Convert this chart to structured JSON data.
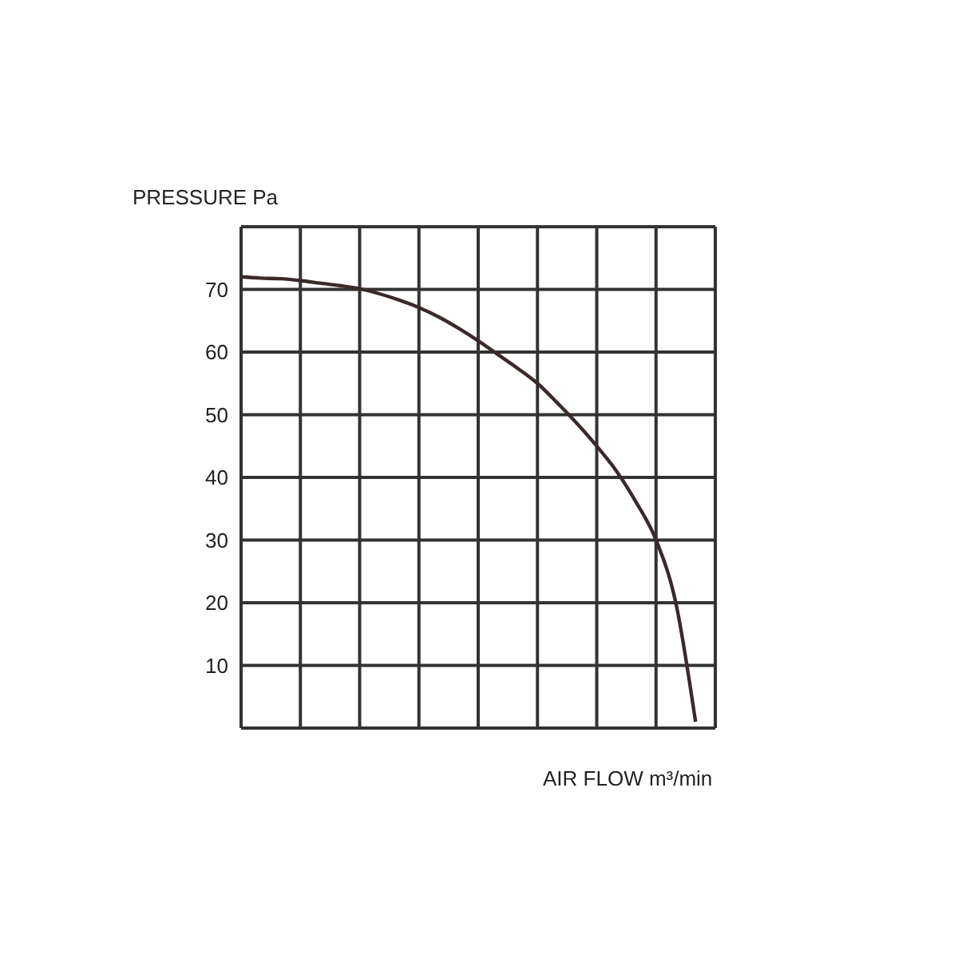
{
  "chart_data": {
    "type": "line",
    "ylabel": "PRESSURE Pa",
    "xlabel": "AIR FLOW m³/min",
    "categories": [
      null,
      null,
      null,
      null,
      null,
      null,
      null,
      null,
      null,
      null,
      null,
      null,
      null,
      null,
      null,
      null,
      null,
      null,
      null,
      null,
      null,
      null,
      null,
      null
    ],
    "series": [
      {
        "color": "#3a2a2a",
        "values": [
          72,
          71.8,
          71.7,
          71.4,
          71,
          70.6,
          70.1,
          69.3,
          68.3,
          67.1,
          65.6,
          63.8,
          61.8,
          59.6,
          57.4,
          55,
          51.9,
          48.6,
          45,
          41,
          36,
          30,
          20,
          1
        ]
      }
    ],
    "ylim": [
      0,
      80
    ],
    "yticks": [
      {
        "value": 0,
        "label": null
      },
      10,
      20,
      30,
      40,
      50,
      60,
      70,
      {
        "value": 80,
        "label": null
      }
    ],
    "tick_labels": "y",
    "grid": true,
    "marker": "none",
    "line_style": "solid"
  }
}
